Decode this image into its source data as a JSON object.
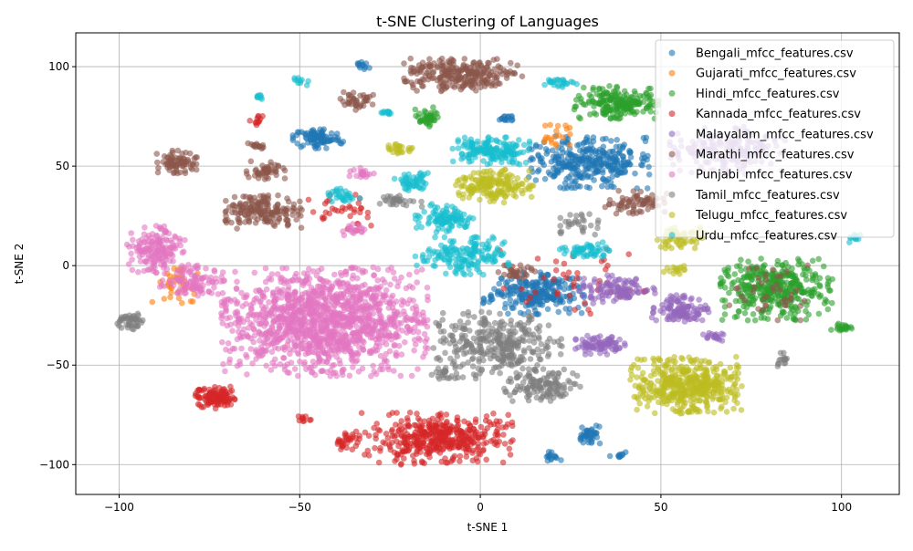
{
  "chart_data": {
    "type": "scatter",
    "title": "t-SNE Clustering of Languages",
    "xlabel": "t-SNE 1",
    "ylabel": "t-SNE 2",
    "xlim": [
      -112,
      116
    ],
    "ylim": [
      -115,
      117
    ],
    "xticks": [
      -100,
      -50,
      0,
      50,
      100
    ],
    "yticks": [
      -100,
      -50,
      0,
      50,
      100
    ],
    "grid": true,
    "legend_position": "upper right",
    "series": [
      {
        "name": "Bengali_mfcc_features.csv",
        "color": "#1f77b4",
        "clusters": [
          {
            "cx": 30,
            "cy": 52,
            "rx": 14,
            "ry": 11,
            "n": 320
          },
          {
            "cx": 15,
            "cy": -14,
            "rx": 12,
            "ry": 9,
            "n": 240
          },
          {
            "cx": -45,
            "cy": 64,
            "rx": 6,
            "ry": 5,
            "n": 90
          },
          {
            "cx": 30,
            "cy": -85,
            "rx": 3,
            "ry": 4,
            "n": 40
          },
          {
            "cx": 20,
            "cy": -96,
            "rx": 2,
            "ry": 2,
            "n": 15
          },
          {
            "cx": -33,
            "cy": 101,
            "rx": 2,
            "ry": 2,
            "n": 12
          },
          {
            "cx": 38,
            "cy": -95,
            "rx": 2,
            "ry": 2,
            "n": 10
          },
          {
            "cx": 7,
            "cy": 74,
            "rx": 3,
            "ry": 2,
            "n": 15
          }
        ]
      },
      {
        "name": "Gujarati_mfcc_features.csv",
        "color": "#ff7f0e",
        "clusters": [
          {
            "cx": -85,
            "cy": -10,
            "rx": 8,
            "ry": 8,
            "n": 40
          },
          {
            "cx": 22,
            "cy": 65,
            "rx": 6,
            "ry": 6,
            "n": 20
          }
        ]
      },
      {
        "name": "Hindi_mfcc_features.csv",
        "color": "#2ca02c",
        "clusters": [
          {
            "cx": 82,
            "cy": -12,
            "rx": 13,
            "ry": 13,
            "n": 380
          },
          {
            "cx": 38,
            "cy": 82,
            "rx": 10,
            "ry": 7,
            "n": 200
          },
          {
            "cx": -15,
            "cy": 75,
            "rx": 3,
            "ry": 5,
            "n": 40
          },
          {
            "cx": 100,
            "cy": -31,
            "rx": 3,
            "ry": 2,
            "n": 20
          }
        ]
      },
      {
        "name": "Kannada_mfcc_features.csv",
        "color": "#d62728",
        "clusters": [
          {
            "cx": -12,
            "cy": -87,
            "rx": 18,
            "ry": 11,
            "n": 420
          },
          {
            "cx": -73,
            "cy": -66,
            "rx": 5,
            "ry": 5,
            "n": 120
          },
          {
            "cx": -37,
            "cy": -88,
            "rx": 3,
            "ry": 4,
            "n": 30
          },
          {
            "cx": -62,
            "cy": 73,
            "rx": 2,
            "ry": 2,
            "n": 12
          },
          {
            "cx": -49,
            "cy": -77,
            "rx": 2,
            "ry": 2,
            "n": 10
          },
          {
            "cx": 25,
            "cy": -8,
            "rx": 18,
            "ry": 14,
            "n": 45
          },
          {
            "cx": -40,
            "cy": 27,
            "rx": 10,
            "ry": 8,
            "n": 35
          }
        ]
      },
      {
        "name": "Malayalam_mfcc_features.csv",
        "color": "#9467bd",
        "clusters": [
          {
            "cx": 68,
            "cy": 58,
            "rx": 14,
            "ry": 10,
            "n": 200
          },
          {
            "cx": 55,
            "cy": -22,
            "rx": 7,
            "ry": 6,
            "n": 120
          },
          {
            "cx": 33,
            "cy": -40,
            "rx": 6,
            "ry": 4,
            "n": 90
          },
          {
            "cx": 38,
            "cy": -12,
            "rx": 9,
            "ry": 6,
            "n": 110
          },
          {
            "cx": 65,
            "cy": -36,
            "rx": 3,
            "ry": 2,
            "n": 20
          }
        ]
      },
      {
        "name": "Marathi_mfcc_features.csv",
        "color": "#8c564b",
        "clusters": [
          {
            "cx": -5,
            "cy": 96,
            "rx": 14,
            "ry": 7,
            "n": 260
          },
          {
            "cx": -60,
            "cy": 27,
            "rx": 9,
            "ry": 7,
            "n": 180
          },
          {
            "cx": -84,
            "cy": 52,
            "rx": 5,
            "ry": 5,
            "n": 80
          },
          {
            "cx": -60,
            "cy": 48,
            "rx": 5,
            "ry": 4,
            "n": 50
          },
          {
            "cx": -34,
            "cy": 83,
            "rx": 4,
            "ry": 4,
            "n": 40
          },
          {
            "cx": 43,
            "cy": 32,
            "rx": 8,
            "ry": 5,
            "n": 70
          },
          {
            "cx": 10,
            "cy": -3,
            "rx": 5,
            "ry": 3,
            "n": 30
          },
          {
            "cx": 80,
            "cy": -14,
            "rx": 10,
            "ry": 12,
            "n": 40
          },
          {
            "cx": -62,
            "cy": 60,
            "rx": 2,
            "ry": 2,
            "n": 15
          }
        ]
      },
      {
        "name": "Punjabi_mfcc_features.csv",
        "color": "#e377c2",
        "clusters": [
          {
            "cx": -43,
            "cy": -28,
            "rx": 24,
            "ry": 23,
            "n": 1300
          },
          {
            "cx": -90,
            "cy": 8,
            "rx": 7,
            "ry": 10,
            "n": 160
          },
          {
            "cx": -80,
            "cy": -8,
            "rx": 8,
            "ry": 7,
            "n": 100
          },
          {
            "cx": -33,
            "cy": 47,
            "rx": 3,
            "ry": 3,
            "n": 20
          },
          {
            "cx": -35,
            "cy": 18,
            "rx": 3,
            "ry": 3,
            "n": 18
          }
        ]
      },
      {
        "name": "Tamil_mfcc_features.csv",
        "color": "#7f7f7f",
        "clusters": [
          {
            "cx": 5,
            "cy": -40,
            "rx": 15,
            "ry": 14,
            "n": 320
          },
          {
            "cx": 17,
            "cy": -60,
            "rx": 9,
            "ry": 7,
            "n": 130
          },
          {
            "cx": -97,
            "cy": -28,
            "rx": 3,
            "ry": 4,
            "n": 45
          },
          {
            "cx": -22,
            "cy": 33,
            "rx": 5,
            "ry": 3,
            "n": 30
          },
          {
            "cx": 28,
            "cy": 20,
            "rx": 5,
            "ry": 5,
            "n": 30
          },
          {
            "cx": 84,
            "cy": -47,
            "rx": 2,
            "ry": 3,
            "n": 15
          },
          {
            "cx": -10,
            "cy": -55,
            "rx": 3,
            "ry": 3,
            "n": 20
          }
        ]
      },
      {
        "name": "Telugu_mfcc_features.csv",
        "color": "#bcbd22",
        "clusters": [
          {
            "cx": 57,
            "cy": -60,
            "rx": 13,
            "ry": 12,
            "n": 450
          },
          {
            "cx": 4,
            "cy": 40,
            "rx": 9,
            "ry": 7,
            "n": 170
          },
          {
            "cx": 55,
            "cy": 14,
            "rx": 6,
            "ry": 5,
            "n": 60
          },
          {
            "cx": -22,
            "cy": 59,
            "rx": 3,
            "ry": 3,
            "n": 25
          },
          {
            "cx": 54,
            "cy": -2,
            "rx": 3,
            "ry": 2,
            "n": 15
          }
        ]
      },
      {
        "name": "Urdu_mfcc_features.csv",
        "color": "#17becf",
        "clusters": [
          {
            "cx": 3,
            "cy": 58,
            "rx": 9,
            "ry": 6,
            "n": 170
          },
          {
            "cx": -5,
            "cy": 5,
            "rx": 11,
            "ry": 8,
            "n": 160
          },
          {
            "cx": -10,
            "cy": 24,
            "rx": 7,
            "ry": 6,
            "n": 100
          },
          {
            "cx": -19,
            "cy": 42,
            "rx": 4,
            "ry": 4,
            "n": 50
          },
          {
            "cx": 30,
            "cy": 7,
            "rx": 7,
            "ry": 4,
            "n": 60
          },
          {
            "cx": 22,
            "cy": 92,
            "rx": 4,
            "ry": 2,
            "n": 25
          },
          {
            "cx": 104,
            "cy": 14,
            "rx": 2,
            "ry": 2,
            "n": 12
          },
          {
            "cx": -50,
            "cy": 93,
            "rx": 2,
            "ry": 2,
            "n": 10
          },
          {
            "cx": -38,
            "cy": 35,
            "rx": 4,
            "ry": 4,
            "n": 30
          },
          {
            "cx": -26,
            "cy": 77,
            "rx": 2,
            "ry": 1,
            "n": 12
          },
          {
            "cx": -61,
            "cy": 85,
            "rx": 1.5,
            "ry": 1.5,
            "n": 8
          }
        ]
      }
    ]
  }
}
